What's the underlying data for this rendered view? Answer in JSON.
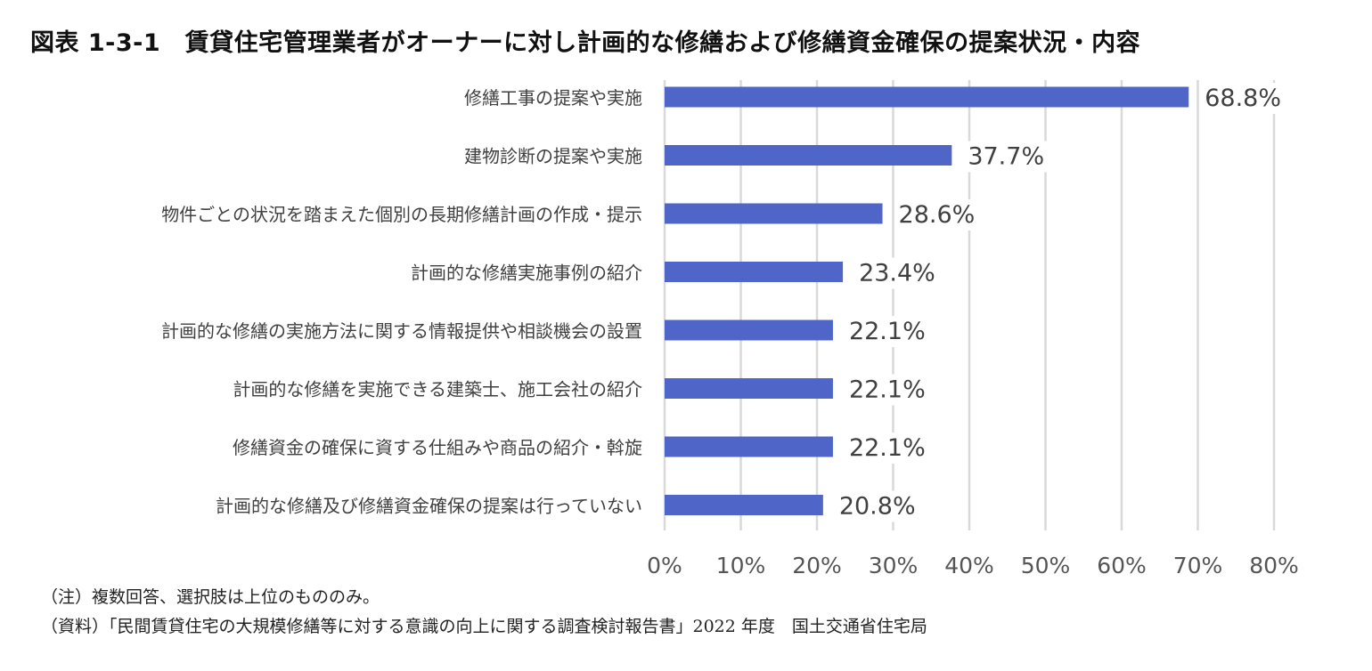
{
  "title": "図表 1-3-1　賃貸住宅管理業者がオーナーに対し計画的な修繕および修繕資金確保の提案状況・内容",
  "notes": {
    "note1": "（注）複数回答、選択肢は上位のもののみ。",
    "note2": "（資料）「民間賃貸住宅の大規模修繕等に対する意識の向上に関する調査検討報告書」2022 年度　国土交通省住宅局"
  },
  "chart_data": {
    "type": "bar",
    "orientation": "horizontal",
    "title": "",
    "xlabel": "",
    "ylabel": "",
    "xlim": [
      0,
      80
    ],
    "grid": true,
    "bar_color": "#5065c8",
    "categories": [
      "修繕工事の提案や実施",
      "建物診断の提案や実施",
      "物件ごとの状況を踏まえた個別の長期修繕計画の作成・提示",
      "計画的な修繕実施事例の紹介",
      "計画的な修繕の実施方法に関する情報提供や相談機会の設置",
      "計画的な修繕を実施できる建築士、施工会社の紹介",
      "修繕資金の確保に資する仕組みや商品の紹介・斡旋",
      "計画的な修繕及び修繕資金確保の提案は行っていない"
    ],
    "values": [
      68.8,
      37.7,
      28.6,
      23.4,
      22.1,
      22.1,
      22.1,
      20.8
    ],
    "value_labels": [
      "68.8%",
      "37.7%",
      "28.6%",
      "23.4%",
      "22.1%",
      "22.1%",
      "22.1%",
      "20.8%"
    ],
    "x_ticks": [
      "0%",
      "10%",
      "20%",
      "30%",
      "40%",
      "50%",
      "60%",
      "70%",
      "80%"
    ]
  }
}
